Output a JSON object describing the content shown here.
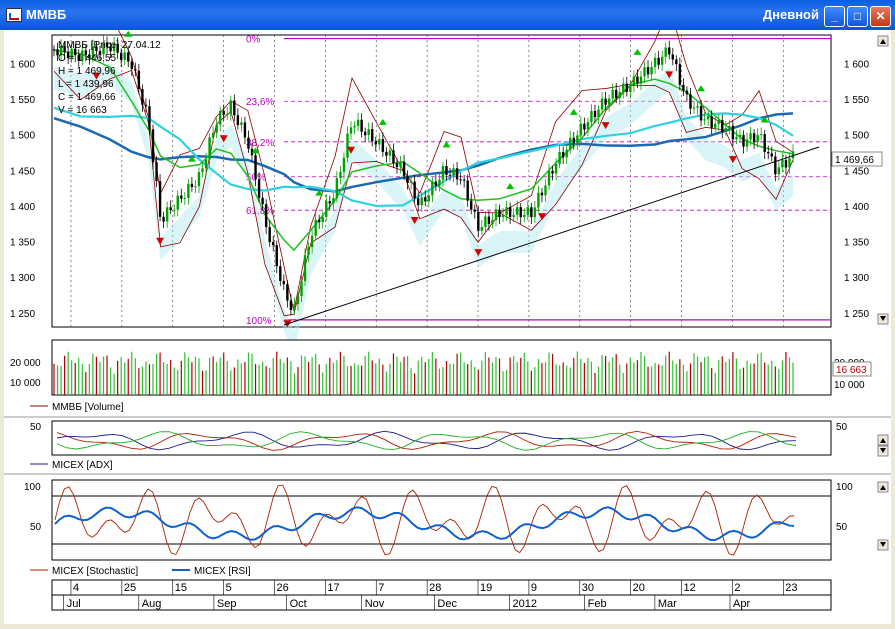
{
  "window": {
    "title": "ММВБ",
    "timeframe": "Дневной",
    "min_label": "_",
    "max_label": "□",
    "close_label": "✕",
    "icon": "chart-app-icon"
  },
  "colors": {
    "title_bar": "#0a5ee0",
    "up_candle": "#00a000",
    "down_candle": "#000000",
    "fib": "#c000c0",
    "ma_blue": "#1b6ab0",
    "ma_cyan": "#30d0e0",
    "ma_green": "#20c020",
    "bb": "#8b0000",
    "rsi": "#1060d0",
    "stoch": "#b02000"
  },
  "main_panel": {
    "header": "ММВБ [Price] 27.04.12",
    "ohlcv": [
      {
        "label": "O = 1 446,55"
      },
      {
        "label": "H = 1 469,96"
      },
      {
        "label": "L = 1 439,96"
      },
      {
        "label": "C = 1 469,66"
      },
      {
        "label": "V = 16 663"
      }
    ],
    "price_ticks": [
      "1 600",
      "1 550",
      "1 500",
      "1 450",
      "1 400",
      "1 350",
      "1 300",
      "1 250"
    ],
    "last_price": "1 469,66",
    "fib_labels": [
      "0%",
      "23,6%",
      "38,2%",
      "50%",
      "61,8%",
      "100%"
    ]
  },
  "volume_panel": {
    "legend": "ММВБ [Volume]",
    "ticks": [
      "20 000",
      "10 000"
    ],
    "right_ticks": [
      "20 000",
      "10 000"
    ],
    "last_value": "16 663"
  },
  "adx_panel": {
    "legend": "MICEX [ADX]",
    "tick": "50"
  },
  "osc_panel": {
    "legend_stoch": "MICEX [Stochastic]",
    "legend_rsi": "MICEX [RSI]",
    "ticks": [
      "100",
      "50"
    ]
  },
  "time_axis": {
    "days": [
      "4",
      "25",
      "15",
      "5",
      "26",
      "17",
      "7",
      "28",
      "19",
      "9",
      "30",
      "20",
      "12",
      "2",
      "23"
    ],
    "months": [
      "Jul",
      "Aug",
      "Sep",
      "Oct",
      "Nov",
      "Dec",
      "2012",
      "Feb",
      "Mar",
      "Apr"
    ]
  },
  "chart_data": {
    "type": "line",
    "title": "ММВБ [Price] 27.04.12",
    "ylim": [
      1230,
      1640
    ],
    "x_range": [
      "2011-06-27",
      "2012-04-27"
    ],
    "price_close": [
      {
        "x": "2011-06-27",
        "y": 1620
      },
      {
        "x": "2011-07-08",
        "y": 1610
      },
      {
        "x": "2011-07-20",
        "y": 1625
      },
      {
        "x": "2011-07-29",
        "y": 1600
      },
      {
        "x": "2011-08-05",
        "y": 1520
      },
      {
        "x": "2011-08-10",
        "y": 1380
      },
      {
        "x": "2011-08-18",
        "y": 1410
      },
      {
        "x": "2011-08-26",
        "y": 1440
      },
      {
        "x": "2011-09-02",
        "y": 1520
      },
      {
        "x": "2011-09-08",
        "y": 1540
      },
      {
        "x": "2011-09-15",
        "y": 1490
      },
      {
        "x": "2011-09-22",
        "y": 1380
      },
      {
        "x": "2011-09-30",
        "y": 1280
      },
      {
        "x": "2011-10-04",
        "y": 1250
      },
      {
        "x": "2011-10-11",
        "y": 1360
      },
      {
        "x": "2011-10-21",
        "y": 1420
      },
      {
        "x": "2011-10-28",
        "y": 1520
      },
      {
        "x": "2011-11-07",
        "y": 1490
      },
      {
        "x": "2011-11-18",
        "y": 1450
      },
      {
        "x": "2011-11-25",
        "y": 1400
      },
      {
        "x": "2011-12-05",
        "y": 1450
      },
      {
        "x": "2011-12-12",
        "y": 1440
      },
      {
        "x": "2011-12-19",
        "y": 1370
      },
      {
        "x": "2011-12-28",
        "y": 1390
      },
      {
        "x": "2012-01-10",
        "y": 1390
      },
      {
        "x": "2012-01-20",
        "y": 1460
      },
      {
        "x": "2012-01-31",
        "y": 1510
      },
      {
        "x": "2012-02-10",
        "y": 1550
      },
      {
        "x": "2012-02-20",
        "y": 1570
      },
      {
        "x": "2012-03-01",
        "y": 1600
      },
      {
        "x": "2012-03-07",
        "y": 1620
      },
      {
        "x": "2012-03-14",
        "y": 1550
      },
      {
        "x": "2012-03-22",
        "y": 1520
      },
      {
        "x": "2012-03-30",
        "y": 1510
      },
      {
        "x": "2012-04-06",
        "y": 1490
      },
      {
        "x": "2012-04-13",
        "y": 1500
      },
      {
        "x": "2012-04-20",
        "y": 1450
      },
      {
        "x": "2012-04-27",
        "y": 1470
      }
    ],
    "fib_levels": [
      {
        "label": "0%",
        "value": 1635
      },
      {
        "label": "23,6%",
        "value": 1547
      },
      {
        "label": "38,2%",
        "value": 1490
      },
      {
        "label": "50%",
        "value": 1441
      },
      {
        "label": "61,8%",
        "value": 1394
      },
      {
        "label": "100%",
        "value": 1240
      }
    ],
    "volume_ylim": [
      0,
      30000
    ],
    "adx_ylim": [
      0,
      60
    ],
    "osc_ylim": [
      0,
      100
    ],
    "osc_levels": [
      80,
      20
    ]
  }
}
